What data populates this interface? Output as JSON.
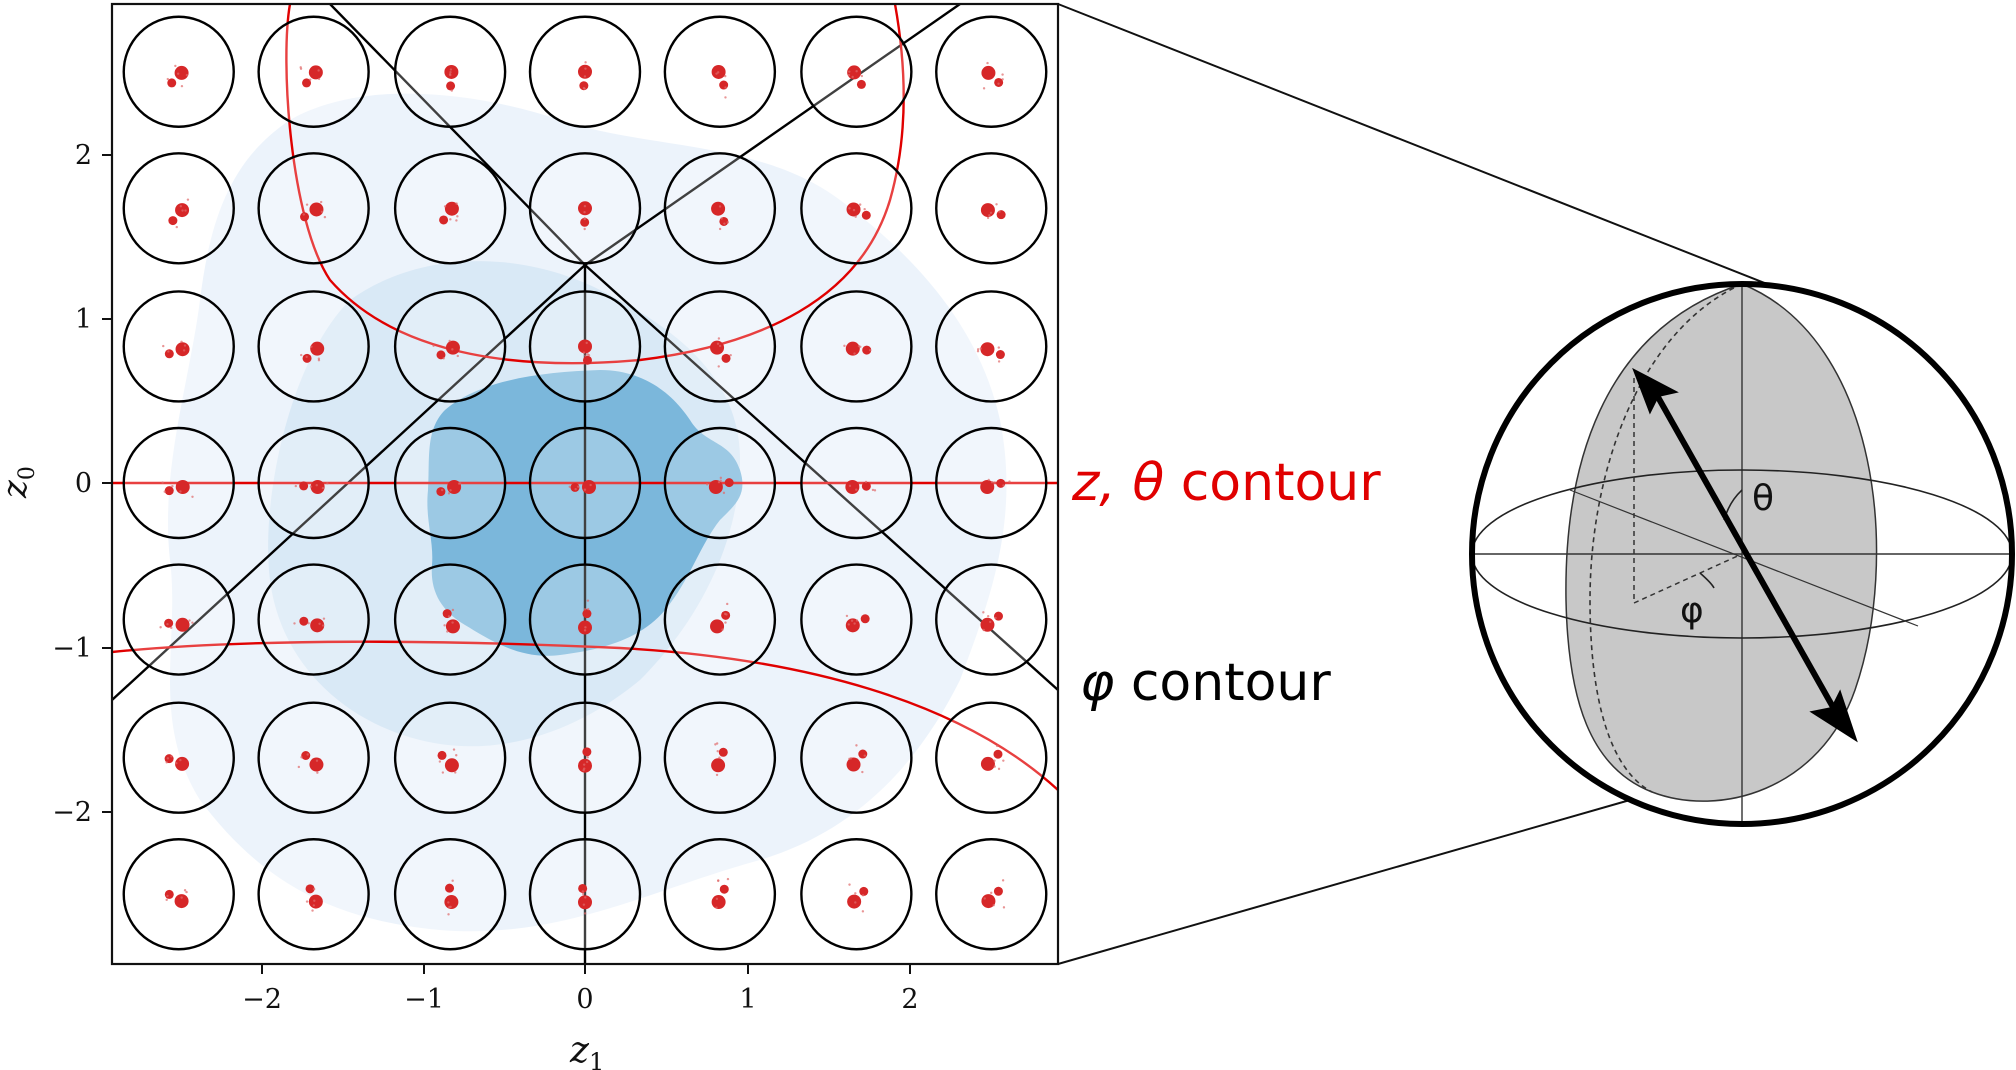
{
  "axes": {
    "x_label": "z",
    "x_label_sub": "1",
    "y_label": "z",
    "y_label_sub": "0",
    "x_ticks": [
      "−2",
      "−1",
      "0",
      "1",
      "2"
    ],
    "y_ticks": [
      "2",
      "1",
      "0",
      "−1",
      "−2"
    ]
  },
  "legend": {
    "red_contour_pre": "z,",
    "red_contour_theta": "θ",
    "red_contour_post": "contour",
    "black_contour_phi": "φ",
    "black_contour_post": "contour"
  },
  "sphere": {
    "theta_label": "θ",
    "phi_label": "φ"
  },
  "colors": {
    "red": "#e00000",
    "marker_red": "#d62728",
    "density_dark": "#6aaed6",
    "density_light": "#e3eef9",
    "sphere_gray": "#c8c8c8"
  },
  "grid": {
    "columns": 7,
    "rows": 7,
    "z1_values": [
      -2.5,
      -1.67,
      -0.83,
      0,
      0.83,
      1.67,
      2.5
    ],
    "z0_values": [
      2.5,
      1.67,
      0.83,
      0,
      -0.83,
      -1.67,
      -2.5
    ]
  }
}
